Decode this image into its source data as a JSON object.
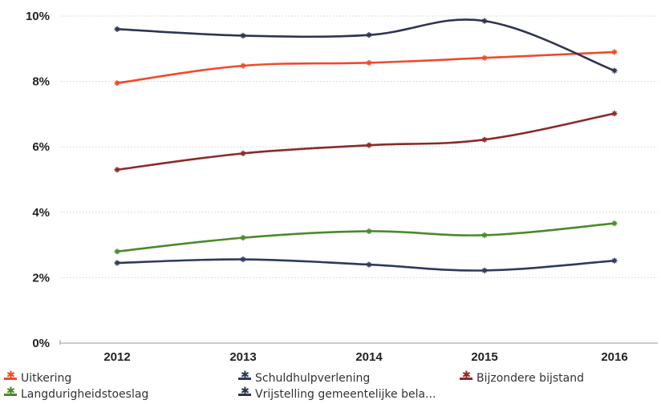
{
  "chart_data": {
    "type": "line",
    "title": "",
    "xlabel": "",
    "ylabel": "",
    "categories": [
      "2012",
      "2013",
      "2014",
      "2015",
      "2016"
    ],
    "ylim": [
      0,
      10
    ],
    "yticks": [
      "0%",
      "2%",
      "4%",
      "6%",
      "8%",
      "10%"
    ],
    "ytick_values": [
      0,
      2,
      4,
      6,
      8,
      10
    ],
    "grid": "horizontal",
    "legend_position": "bottom",
    "series": [
      {
        "name": "Uitkering",
        "color": "#f04a2a",
        "values": [
          7.95,
          8.48,
          8.57,
          8.72,
          8.9
        ]
      },
      {
        "name": "Schuldhulpverlening",
        "color": "#2e3a5c",
        "values": [
          2.45,
          2.56,
          2.4,
          2.22,
          2.52
        ]
      },
      {
        "name": "Bijzondere bijstand",
        "color": "#8a2a28",
        "values": [
          5.3,
          5.8,
          6.05,
          6.22,
          7.02
        ]
      },
      {
        "name": "Langdurigheidstoeslag",
        "color": "#4a8a2a",
        "values": [
          2.8,
          3.22,
          3.42,
          3.3,
          3.66
        ]
      },
      {
        "name": "Vrijstelling gemeentelijke bela...",
        "color": "#2f3450",
        "values": [
          9.6,
          9.4,
          9.42,
          9.85,
          8.33
        ]
      }
    ]
  }
}
